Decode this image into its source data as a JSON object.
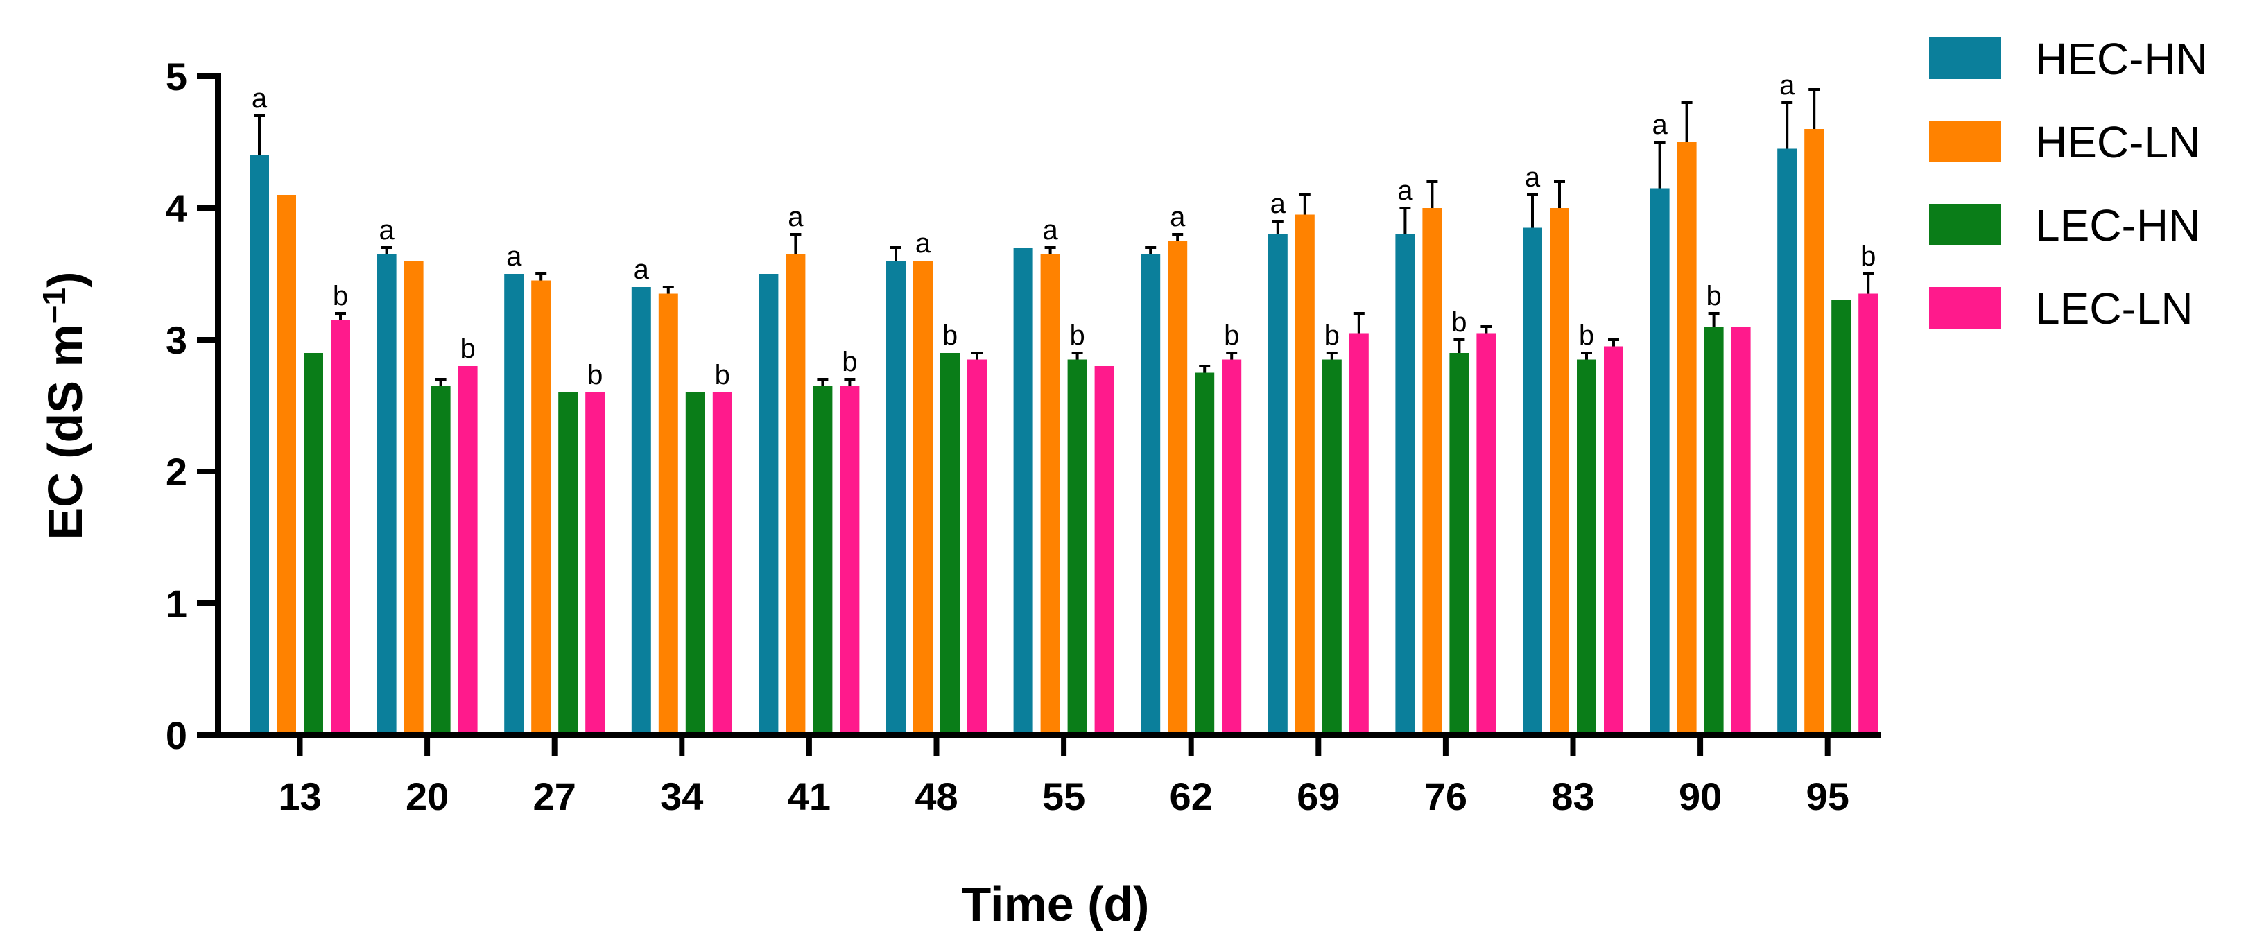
{
  "chart_data": {
    "type": "bar",
    "title": "",
    "xlabel": "Time (d)",
    "ylabel": {
      "prefix": "EC (dS m",
      "superscript": "−1",
      "suffix": ")"
    },
    "ylim": [
      0,
      5
    ],
    "yticks": [
      "0",
      "1",
      "2",
      "3",
      "4",
      "5"
    ],
    "categories": [
      "13",
      "20",
      "27",
      "34",
      "41",
      "48",
      "55",
      "62",
      "69",
      "76",
      "83",
      "90",
      "95"
    ],
    "series": [
      {
        "name": "HEC-HN",
        "color": "#0b7f9b",
        "values": [
          4.4,
          3.65,
          3.5,
          3.4,
          3.5,
          3.6,
          3.7,
          3.65,
          3.8,
          3.8,
          3.85,
          4.15,
          4.45
        ],
        "errors": [
          0.3,
          0.05,
          0,
          0,
          0,
          0.1,
          0,
          0.05,
          0.1,
          0.2,
          0.25,
          0.35,
          0.35
        ]
      },
      {
        "name": "HEC-LN",
        "color": "#ff8200",
        "values": [
          4.1,
          3.6,
          3.45,
          3.35,
          3.65,
          3.6,
          3.65,
          3.75,
          3.95,
          4.0,
          4.0,
          4.5,
          4.6
        ],
        "errors": [
          0,
          0,
          0.05,
          0.05,
          0.15,
          0,
          0.05,
          0.05,
          0.15,
          0.2,
          0.2,
          0.3,
          0.3
        ]
      },
      {
        "name": "LEC-HN",
        "color": "#0a7d18",
        "values": [
          2.9,
          2.65,
          2.6,
          2.6,
          2.65,
          2.9,
          2.85,
          2.75,
          2.85,
          2.9,
          2.85,
          3.1,
          3.3
        ],
        "errors": [
          0,
          0.05,
          0,
          0,
          0.05,
          0,
          0.05,
          0.05,
          0.05,
          0.1,
          0.05,
          0.1,
          0
        ]
      },
      {
        "name": "LEC-LN",
        "color": "#ff1a8c",
        "values": [
          3.15,
          2.8,
          2.6,
          2.6,
          2.65,
          2.85,
          2.8,
          2.85,
          3.05,
          3.05,
          2.95,
          3.1,
          3.35
        ],
        "errors": [
          0.05,
          0,
          0,
          0,
          0.05,
          0.05,
          0,
          0.05,
          0.15,
          0.05,
          0.05,
          0,
          0.15
        ]
      }
    ],
    "annotations": [
      {
        "category": "13",
        "series": "HEC-HN",
        "text": "a"
      },
      {
        "category": "13",
        "series": "LEC-LN",
        "text": "b"
      },
      {
        "category": "20",
        "series": "HEC-HN",
        "text": "a"
      },
      {
        "category": "20",
        "series": "LEC-LN",
        "text": "b"
      },
      {
        "category": "27",
        "series": "HEC-HN",
        "text": "a"
      },
      {
        "category": "27",
        "series": "LEC-LN",
        "text": "b"
      },
      {
        "category": "34",
        "series": "HEC-HN",
        "text": "a"
      },
      {
        "category": "34",
        "series": "LEC-LN",
        "text": "b"
      },
      {
        "category": "41",
        "series": "HEC-LN",
        "text": "a"
      },
      {
        "category": "41",
        "series": "LEC-LN",
        "text": "b"
      },
      {
        "category": "48",
        "series": "HEC-LN",
        "text": "a"
      },
      {
        "category": "48",
        "series": "LEC-HN",
        "text": "b"
      },
      {
        "category": "55",
        "series": "HEC-LN",
        "text": "a"
      },
      {
        "category": "55",
        "series": "LEC-HN",
        "text": "b"
      },
      {
        "category": "62",
        "series": "HEC-LN",
        "text": "a"
      },
      {
        "category": "62",
        "series": "LEC-LN",
        "text": "b"
      },
      {
        "category": "69",
        "series": "HEC-HN",
        "text": "a"
      },
      {
        "category": "69",
        "series": "LEC-HN",
        "text": "b"
      },
      {
        "category": "76",
        "series": "HEC-HN",
        "text": "a"
      },
      {
        "category": "76",
        "series": "LEC-HN",
        "text": "b"
      },
      {
        "category": "83",
        "series": "HEC-HN",
        "text": "a"
      },
      {
        "category": "83",
        "series": "LEC-HN",
        "text": "b"
      },
      {
        "category": "90",
        "series": "HEC-HN",
        "text": "a"
      },
      {
        "category": "90",
        "series": "LEC-HN",
        "text": "b"
      },
      {
        "category": "95",
        "series": "HEC-HN",
        "text": "a"
      },
      {
        "category": "95",
        "series": "LEC-LN",
        "text": "b"
      }
    ],
    "legend_position": "top-right",
    "grid": false
  }
}
